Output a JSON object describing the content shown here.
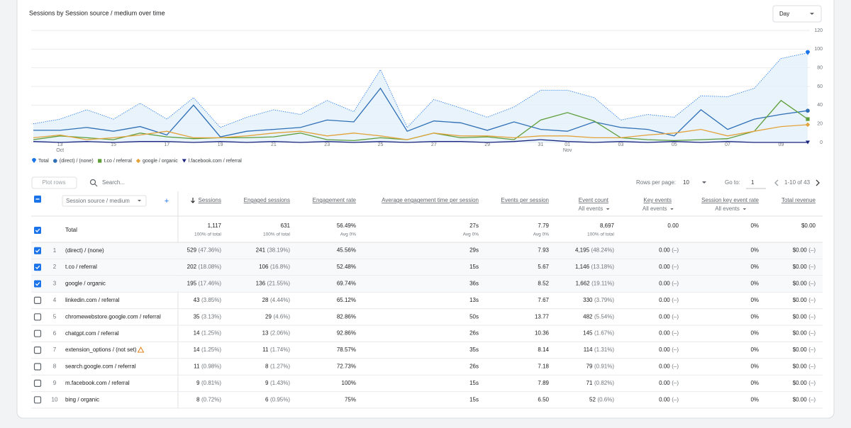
{
  "chart_data": {
    "type": "line",
    "title": "Sessions by Session source / medium over time",
    "interval": "Day",
    "categories": [
      null,
      "13",
      null,
      "15",
      null,
      "17",
      null,
      "19",
      null,
      "21",
      null,
      "23",
      null,
      "25",
      null,
      "27",
      null,
      "29",
      null,
      "31",
      "01",
      null,
      "03",
      null,
      "05",
      null,
      "07",
      null,
      "09",
      null
    ],
    "month_labels": [
      {
        "category_index": 1,
        "label": "Oct"
      },
      {
        "category_index": 20,
        "label": "Nov"
      }
    ],
    "ylim": [
      0,
      120
    ],
    "yticks": [
      0,
      20,
      40,
      60,
      80,
      100,
      120
    ],
    "grid": true,
    "series": [
      {
        "name": "Total",
        "color": "#1a73e8",
        "values": [
          20,
          25,
          35,
          25,
          42,
          25,
          48,
          16,
          27,
          35,
          30,
          45,
          33,
          78,
          16,
          46,
          37,
          27,
          38,
          56,
          56,
          48,
          24,
          30,
          27,
          50,
          49,
          58,
          90,
          96
        ]
      },
      {
        "name": "(direct) / (none)",
        "color": "#2f6fb5",
        "values": [
          13,
          13,
          16,
          12,
          17,
          8,
          40,
          6,
          12,
          14,
          16,
          24,
          22,
          58,
          12,
          23,
          21,
          13,
          22,
          14,
          12,
          22,
          16,
          14,
          7,
          35,
          14,
          25,
          30,
          34
        ]
      },
      {
        "name": "t.co / referral",
        "color": "#5f9e3a",
        "values": [
          3,
          7,
          5,
          3,
          10,
          6,
          4,
          5,
          5,
          6,
          10,
          3,
          2,
          5,
          3,
          10,
          5,
          6,
          3,
          24,
          32,
          23,
          5,
          3,
          2,
          3,
          4,
          12,
          45,
          25
        ]
      },
      {
        "name": "google / organic",
        "color": "#e3a33b",
        "values": [
          5,
          8,
          3,
          5,
          8,
          12,
          5,
          5,
          7,
          10,
          12,
          7,
          10,
          7,
          3,
          10,
          7,
          7,
          5,
          7,
          7,
          5,
          5,
          8,
          10,
          14,
          7,
          12,
          17,
          19
        ]
      },
      {
        "name": "l.facebook.com / referral",
        "color": "#1a237e",
        "values": [
          1,
          0,
          1,
          0,
          1,
          1,
          0,
          1,
          0,
          1,
          0,
          1,
          0,
          1,
          0,
          1,
          1,
          0,
          1,
          3,
          1,
          0,
          1,
          0,
          1,
          0,
          1,
          0,
          0,
          0
        ]
      }
    ]
  },
  "toolbar": {
    "plot_rows": "Plot rows",
    "search": "Search...",
    "rows_per_page_label": "Rows per page:",
    "rows_per_page": "10",
    "go_to_label": "Go to:",
    "go_to": "1",
    "range": "1-10 of 43"
  },
  "table": {
    "dimension": "Session source / medium",
    "columns": [
      {
        "label": "Sessions"
      },
      {
        "label": "Engaged sessions"
      },
      {
        "label": "Engagement rate"
      },
      {
        "label": "Average engagement time per session"
      },
      {
        "label": "Events per session"
      },
      {
        "label": "Event count",
        "sub": "All events"
      },
      {
        "label": "Key events",
        "sub": "All events"
      },
      {
        "label": "Session key event rate",
        "sub": "All events"
      },
      {
        "label": "Total revenue"
      }
    ],
    "total": {
      "label": "Total",
      "cells": [
        [
          "1,117",
          "100% of total"
        ],
        [
          "631",
          "100% of total"
        ],
        [
          "56.49%",
          "Avg 0%"
        ],
        [
          "27s",
          "Avg 0%"
        ],
        [
          "7.79",
          "Avg 0%"
        ],
        [
          "8,697",
          "100% of total"
        ],
        [
          "0.00"
        ],
        [
          "0%"
        ],
        [
          "$0.00"
        ]
      ]
    },
    "rows": [
      {
        "rank": 1,
        "checked": true,
        "name": "(direct) / (none)",
        "cells": [
          [
            "529",
            "(47.36%)"
          ],
          [
            "241",
            "(38.19%)"
          ],
          [
            "45.56%"
          ],
          [
            "29s"
          ],
          [
            "7.93"
          ],
          [
            "4,195",
            "(48.24%)"
          ],
          [
            "0.00",
            "(–)"
          ],
          [
            "0%"
          ],
          [
            "$0.00",
            "(–)"
          ]
        ]
      },
      {
        "rank": 2,
        "checked": true,
        "name": "t.co / referral",
        "cells": [
          [
            "202",
            "(18.08%)"
          ],
          [
            "106",
            "(16.8%)"
          ],
          [
            "52.48%"
          ],
          [
            "15s"
          ],
          [
            "5.67"
          ],
          [
            "1,146",
            "(13.18%)"
          ],
          [
            "0.00",
            "(–)"
          ],
          [
            "0%"
          ],
          [
            "$0.00",
            "(–)"
          ]
        ]
      },
      {
        "rank": 3,
        "checked": true,
        "name": "google / organic",
        "cells": [
          [
            "195",
            "(17.46%)"
          ],
          [
            "136",
            "(21.55%)"
          ],
          [
            "69.74%"
          ],
          [
            "36s"
          ],
          [
            "8.52"
          ],
          [
            "1,662",
            "(19.11%)"
          ],
          [
            "0.00",
            "(–)"
          ],
          [
            "0%"
          ],
          [
            "$0.00",
            "(–)"
          ]
        ]
      },
      {
        "rank": 4,
        "checked": false,
        "name": "linkedin.com / referral",
        "cells": [
          [
            "43",
            "(3.85%)"
          ],
          [
            "28",
            "(4.44%)"
          ],
          [
            "65.12%"
          ],
          [
            "13s"
          ],
          [
            "7.67"
          ],
          [
            "330",
            "(3.79%)"
          ],
          [
            "0.00",
            "(–)"
          ],
          [
            "0%"
          ],
          [
            "$0.00",
            "(–)"
          ]
        ]
      },
      {
        "rank": 5,
        "checked": false,
        "name": "chromewebstore.google.com / referral",
        "cells": [
          [
            "35",
            "(3.13%)"
          ],
          [
            "29",
            "(4.6%)"
          ],
          [
            "82.86%"
          ],
          [
            "50s"
          ],
          [
            "13.77"
          ],
          [
            "482",
            "(5.54%)"
          ],
          [
            "0.00",
            "(–)"
          ],
          [
            "0%"
          ],
          [
            "$0.00",
            "(–)"
          ]
        ]
      },
      {
        "rank": 6,
        "checked": false,
        "name": "chatgpt.com / referral",
        "cells": [
          [
            "14",
            "(1.25%)"
          ],
          [
            "13",
            "(2.06%)"
          ],
          [
            "92.86%"
          ],
          [
            "26s"
          ],
          [
            "10.36"
          ],
          [
            "145",
            "(1.67%)"
          ],
          [
            "0.00",
            "(–)"
          ],
          [
            "0%"
          ],
          [
            "$0.00",
            "(–)"
          ]
        ]
      },
      {
        "rank": 7,
        "checked": false,
        "warning": true,
        "name": "extension_options / (not set)",
        "cells": [
          [
            "14",
            "(1.25%)"
          ],
          [
            "11",
            "(1.74%)"
          ],
          [
            "78.57%"
          ],
          [
            "35s"
          ],
          [
            "8.14"
          ],
          [
            "114",
            "(1.31%)"
          ],
          [
            "0.00",
            "(–)"
          ],
          [
            "0%"
          ],
          [
            "$0.00",
            "(–)"
          ]
        ]
      },
      {
        "rank": 8,
        "checked": false,
        "name": "search.google.com / referral",
        "cells": [
          [
            "11",
            "(0.98%)"
          ],
          [
            "8",
            "(1.27%)"
          ],
          [
            "72.73%"
          ],
          [
            "26s"
          ],
          [
            "7.18"
          ],
          [
            "79",
            "(0.91%)"
          ],
          [
            "0.00",
            "(–)"
          ],
          [
            "0%"
          ],
          [
            "$0.00",
            "(–)"
          ]
        ]
      },
      {
        "rank": 9,
        "checked": false,
        "name": "m.facebook.com / referral",
        "cells": [
          [
            "9",
            "(0.81%)"
          ],
          [
            "9",
            "(1.43%)"
          ],
          [
            "100%"
          ],
          [
            "15s"
          ],
          [
            "7.89"
          ],
          [
            "71",
            "(0.82%)"
          ],
          [
            "0.00",
            "(–)"
          ],
          [
            "0%"
          ],
          [
            "$0.00",
            "(–)"
          ]
        ]
      },
      {
        "rank": 10,
        "checked": false,
        "name": "bing / organic",
        "cells": [
          [
            "8",
            "(0.72%)"
          ],
          [
            "6",
            "(0.95%)"
          ],
          [
            "75%"
          ],
          [
            "15s"
          ],
          [
            "6.50"
          ],
          [
            "52",
            "(0.6%)"
          ],
          [
            "0.00",
            "(–)"
          ],
          [
            "0%"
          ],
          [
            "$0.00",
            "(–)"
          ]
        ]
      }
    ]
  }
}
